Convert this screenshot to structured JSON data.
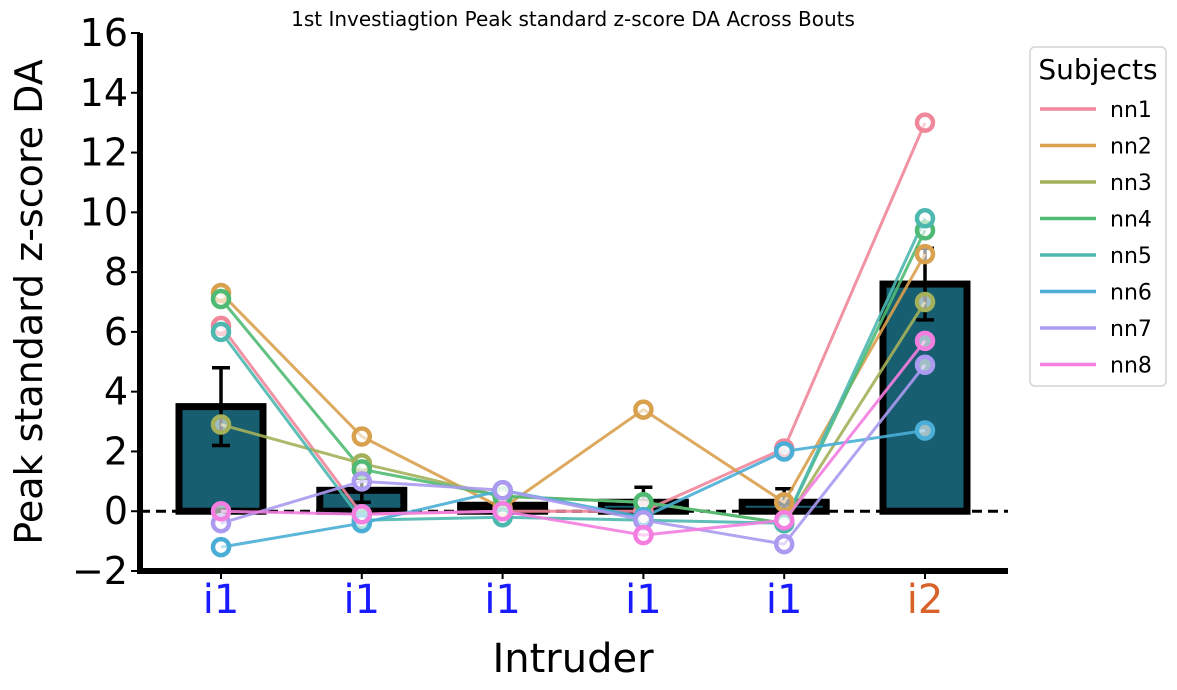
{
  "chart_data": {
    "type": "bar",
    "title": "1st Investiagtion Peak standard z-score DA Across Bouts",
    "xlabel": "Intruder",
    "ylabel": "Peak standard z-score DA",
    "ylim": [
      -2,
      16
    ],
    "yticks": [
      -2,
      0,
      2,
      4,
      6,
      8,
      10,
      12,
      14,
      16
    ],
    "categories": [
      "i1",
      "i1",
      "i1",
      "i1",
      "i1",
      "i2"
    ],
    "category_colors": [
      "#1a1aff",
      "#1a1aff",
      "#1a1aff",
      "#1a1aff",
      "#1a1aff",
      "#d9622b"
    ],
    "bar_color": "#165e70",
    "values": [
      3.5,
      0.7,
      0.2,
      0.3,
      0.3,
      7.6
    ],
    "error": [
      1.3,
      0.4,
      0.25,
      0.5,
      0.45,
      1.2
    ],
    "reference_line": 0,
    "legend": {
      "title": "Subjects",
      "placement": "top-right-outside"
    },
    "series": [
      {
        "name": "nn1",
        "color": "#f0879a",
        "values": [
          6.2,
          -0.1,
          0.0,
          0.0,
          2.1,
          13.0
        ]
      },
      {
        "name": "nn2",
        "color": "#d9a04e",
        "values": [
          7.3,
          2.5,
          0.1,
          3.4,
          0.3,
          8.6
        ]
      },
      {
        "name": "nn3",
        "color": "#a4b05a",
        "values": [
          2.9,
          1.6,
          0.5,
          0.3,
          -0.4,
          7.0
        ]
      },
      {
        "name": "nn4",
        "color": "#4fba73",
        "values": [
          7.1,
          1.4,
          0.5,
          0.3,
          -0.4,
          9.4
        ]
      },
      {
        "name": "nn5",
        "color": "#4db8b0",
        "values": [
          6.0,
          -0.3,
          -0.2,
          -0.3,
          -0.4,
          9.8
        ]
      },
      {
        "name": "nn6",
        "color": "#4aaed6",
        "values": [
          -1.2,
          -0.4,
          0.7,
          -0.2,
          2.0,
          2.7
        ]
      },
      {
        "name": "nn7",
        "color": "#ab9af0",
        "values": [
          -0.4,
          1.0,
          0.7,
          -0.3,
          -1.1,
          4.9
        ]
      },
      {
        "name": "nn8",
        "color": "#f37ee0",
        "values": [
          0.0,
          -0.1,
          0.0,
          -0.8,
          -0.3,
          5.7
        ]
      }
    ]
  }
}
